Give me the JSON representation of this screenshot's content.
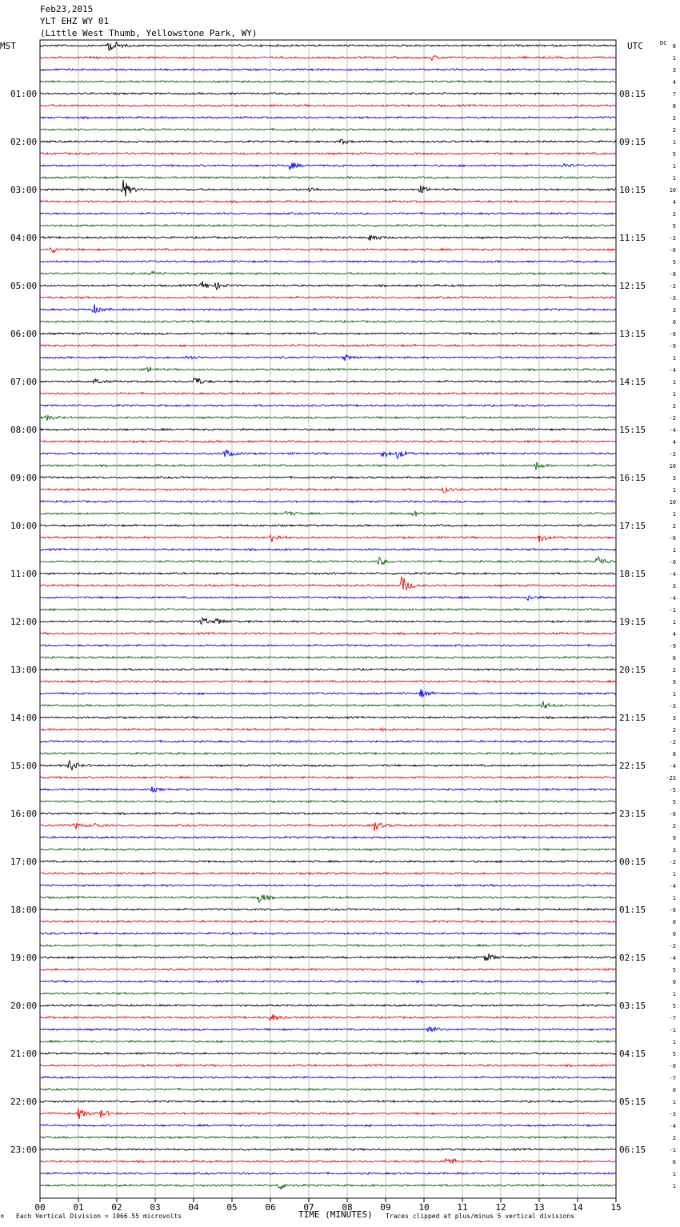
{
  "header": {
    "date": "Feb23,2015",
    "station": "YLT EHZ WY 01",
    "location": "(Little West Thumb, Yellowstone Park, WY)"
  },
  "left_zone": "MST",
  "right_zone": "UTC",
  "dc_label": "DC",
  "footer": {
    "scale_mark": "M",
    "vertical_division": "Each Vertical Division = 1066.55 microvolts",
    "clipping": "Traces clipped at plus/minus 5 vertical divisions"
  },
  "colors": {
    "trace_cycle": [
      "#000000",
      "#ee0000",
      "#0000ee",
      "#006600"
    ],
    "grid": "#999999",
    "frame": "#000000"
  },
  "chart_data": {
    "type": "line",
    "title": "YLT EHZ WY 01",
    "xlabel": "TIME (MINUTES)",
    "xlim": [
      0,
      15
    ],
    "x_ticks": [
      "00",
      "01",
      "02",
      "03",
      "04",
      "05",
      "06",
      "07",
      "08",
      "09",
      "10",
      "11",
      "12",
      "13",
      "14",
      "15"
    ],
    "trace_count": 96,
    "minutes_per_trace": 15,
    "left_time_labels": [
      "01:00",
      "02:00",
      "03:00",
      "04:00",
      "05:00",
      "06:00",
      "07:00",
      "08:00",
      "09:00",
      "10:00",
      "11:00",
      "12:00",
      "13:00",
      "14:00",
      "15:00",
      "16:00",
      "17:00",
      "18:00",
      "19:00",
      "20:00",
      "21:00",
      "22:00",
      "23:00"
    ],
    "right_time_labels": [
      "08:15",
      "09:15",
      "10:15",
      "11:15",
      "12:15",
      "13:15",
      "14:15",
      "15:15",
      "16:15",
      "17:15",
      "18:15",
      "19:15",
      "20:15",
      "21:15",
      "22:15",
      "23:15",
      "00:15",
      "01:15",
      "02:15",
      "03:15",
      "04:15",
      "05:15",
      "06:15"
    ],
    "dc_offsets": [
      "8",
      "1",
      "3",
      "4",
      "7",
      "8",
      "2",
      "2",
      "1",
      "5",
      "1",
      "1",
      "10",
      "4",
      "2",
      "5",
      "-2",
      "-6",
      "5",
      "-8",
      "-2",
      "-3",
      "3",
      "0",
      "-6",
      "-9",
      "1",
      "-4",
      "1",
      "1",
      "2",
      "-2",
      "-4",
      "4",
      "-2",
      "10",
      "3",
      "1",
      "10",
      "1",
      "2",
      "-6",
      "1",
      "-0",
      "-4",
      "3",
      "-4",
      "-1",
      "1",
      "4",
      "-9",
      "6",
      "2",
      "9",
      "1",
      "-3",
      "3",
      "2",
      "-2",
      "8",
      "-4",
      "-23",
      "-5",
      "5",
      "-6",
      "2",
      "9",
      "3",
      "-2",
      "1",
      "-4",
      "1",
      "-6",
      "0",
      "0",
      "-2",
      "-4",
      "5",
      "0",
      "1",
      "5",
      "-7",
      "-1",
      "1",
      "5",
      "-0",
      "-7",
      "0",
      "1",
      "-3",
      "-4",
      "2",
      "-1",
      "6",
      "1",
      "1"
    ],
    "events": [
      {
        "trace": 0,
        "minute": 1.75,
        "amplitude": 8
      },
      {
        "trace": 0,
        "minute": 1.9,
        "amplitude": 4
      },
      {
        "trace": 1,
        "minute": 10.2,
        "amplitude": 3
      },
      {
        "trace": 8,
        "minute": 7.8,
        "amplitude": 4
      },
      {
        "trace": 10,
        "minute": 6.5,
        "amplitude": 5
      },
      {
        "trace": 10,
        "minute": 13.6,
        "amplitude": 3
      },
      {
        "trace": 12,
        "minute": 2.15,
        "amplitude": 14
      },
      {
        "trace": 12,
        "minute": 7.0,
        "amplitude": 4
      },
      {
        "trace": 12,
        "minute": 9.9,
        "amplitude": 5
      },
      {
        "trace": 16,
        "minute": 8.6,
        "amplitude": 6
      },
      {
        "trace": 17,
        "minute": 0.3,
        "amplitude": 4
      },
      {
        "trace": 19,
        "minute": 2.9,
        "amplitude": 3
      },
      {
        "trace": 20,
        "minute": 4.2,
        "amplitude": 6
      },
      {
        "trace": 20,
        "minute": 4.6,
        "amplitude": 4
      },
      {
        "trace": 22,
        "minute": 1.4,
        "amplitude": 6
      },
      {
        "trace": 26,
        "minute": 3.8,
        "amplitude": 3
      },
      {
        "trace": 26,
        "minute": 7.9,
        "amplitude": 4
      },
      {
        "trace": 27,
        "minute": 2.8,
        "amplitude": 4
      },
      {
        "trace": 28,
        "minute": 1.4,
        "amplitude": 4
      },
      {
        "trace": 28,
        "minute": 4.0,
        "amplitude": 8
      },
      {
        "trace": 31,
        "minute": 0.15,
        "amplitude": 4
      },
      {
        "trace": 34,
        "minute": 4.8,
        "amplitude": 6
      },
      {
        "trace": 34,
        "minute": 8.9,
        "amplitude": 6
      },
      {
        "trace": 34,
        "minute": 9.3,
        "amplitude": 6
      },
      {
        "trace": 35,
        "minute": 12.9,
        "amplitude": 6
      },
      {
        "trace": 37,
        "minute": 10.5,
        "amplitude": 4
      },
      {
        "trace": 39,
        "minute": 6.4,
        "amplitude": 4
      },
      {
        "trace": 39,
        "minute": 9.7,
        "amplitude": 4
      },
      {
        "trace": 41,
        "minute": 6.0,
        "amplitude": 8
      },
      {
        "trace": 41,
        "minute": 13.0,
        "amplitude": 6
      },
      {
        "trace": 43,
        "minute": 8.8,
        "amplitude": 6
      },
      {
        "trace": 43,
        "minute": 14.5,
        "amplitude": 9
      },
      {
        "trace": 45,
        "minute": 9.4,
        "amplitude": 15
      },
      {
        "trace": 46,
        "minute": 12.7,
        "amplitude": 4
      },
      {
        "trace": 48,
        "minute": 4.2,
        "amplitude": 6
      },
      {
        "trace": 48,
        "minute": 4.6,
        "amplitude": 4
      },
      {
        "trace": 54,
        "minute": 9.9,
        "amplitude": 6
      },
      {
        "trace": 55,
        "minute": 13.1,
        "amplitude": 5
      },
      {
        "trace": 57,
        "minute": 8.9,
        "amplitude": 3
      },
      {
        "trace": 60,
        "minute": 0.75,
        "amplitude": 9
      },
      {
        "trace": 62,
        "minute": 2.9,
        "amplitude": 3
      },
      {
        "trace": 65,
        "minute": 0.9,
        "amplitude": 4
      },
      {
        "trace": 65,
        "minute": 1.4,
        "amplitude": 3
      },
      {
        "trace": 65,
        "minute": 8.7,
        "amplitude": 7
      },
      {
        "trace": 71,
        "minute": 5.7,
        "amplitude": 7
      },
      {
        "trace": 76,
        "minute": 11.6,
        "amplitude": 7
      },
      {
        "trace": 81,
        "minute": 6.0,
        "amplitude": 5
      },
      {
        "trace": 82,
        "minute": 10.1,
        "amplitude": 6
      },
      {
        "trace": 89,
        "minute": 1.0,
        "amplitude": 7
      },
      {
        "trace": 89,
        "minute": 1.55,
        "amplitude": 6
      },
      {
        "trace": 93,
        "minute": 10.6,
        "amplitude": 7
      },
      {
        "trace": 95,
        "minute": 6.2,
        "amplitude": 6
      }
    ]
  }
}
